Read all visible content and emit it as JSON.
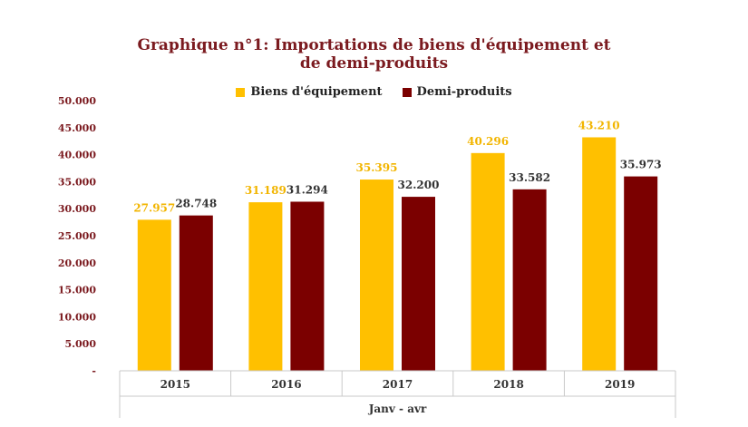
{
  "chart_data": {
    "type": "bar",
    "title_line1": "Graphique n°1: Importations de biens d'équipement et",
    "title_line2": "de demi-produits",
    "xlabel": "Janv - avr",
    "ylabel": "",
    "categories": [
      "2015",
      "2016",
      "2017",
      "2018",
      "2019"
    ],
    "ylim": [
      0,
      50000
    ],
    "yticks": [
      {
        "value": 0,
        "label": "-"
      },
      {
        "value": 5000,
        "label": "5.000"
      },
      {
        "value": 10000,
        "label": "10.000"
      },
      {
        "value": 15000,
        "label": "15.000"
      },
      {
        "value": 20000,
        "label": "20.000"
      },
      {
        "value": 25000,
        "label": "25.000"
      },
      {
        "value": 30000,
        "label": "30.000"
      },
      {
        "value": 35000,
        "label": "35.000"
      },
      {
        "value": 40000,
        "label": "40.000"
      },
      {
        "value": 45000,
        "label": "45.000"
      },
      {
        "value": 50000,
        "label": "50.000"
      }
    ],
    "series": [
      {
        "name": "Biens d'équipement",
        "color": "#ffc000",
        "label_color": "#f2b500",
        "values": [
          27957,
          31189,
          35395,
          40296,
          43210
        ],
        "labels": [
          "27.957",
          "31.189",
          "35.395",
          "40.296",
          "43.210"
        ]
      },
      {
        "name": "Demi-produits",
        "color": "#7b0000",
        "label_color": "#333333",
        "values": [
          28748,
          31294,
          32200,
          33582,
          35973
        ],
        "labels": [
          "28.748",
          "31.294",
          "32.200",
          "33.582",
          "35.973"
        ]
      }
    ],
    "legend_position": "top",
    "grid": false,
    "axis_color": "#7b1a1f"
  }
}
